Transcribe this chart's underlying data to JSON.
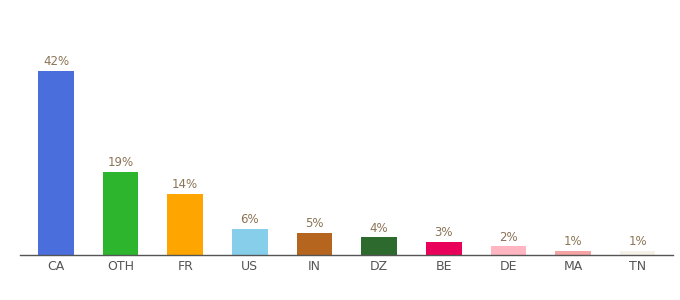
{
  "categories": [
    "CA",
    "OTH",
    "FR",
    "US",
    "IN",
    "DZ",
    "BE",
    "DE",
    "MA",
    "TN"
  ],
  "values": [
    42,
    19,
    14,
    6,
    5,
    4,
    3,
    2,
    1,
    1
  ],
  "bar_colors": [
    "#4a6fdc",
    "#2db52d",
    "#ffa500",
    "#87ceeb",
    "#b5651d",
    "#2d6a2d",
    "#e8005a",
    "#ffb6c1",
    "#f4a4a4",
    "#f5f0e8"
  ],
  "ylim": [
    0,
    50
  ],
  "label_fontsize": 8.5,
  "tick_fontsize": 9,
  "label_color": "#8b7355",
  "tick_color": "#555555",
  "background_color": "#ffffff",
  "bar_width": 0.55
}
